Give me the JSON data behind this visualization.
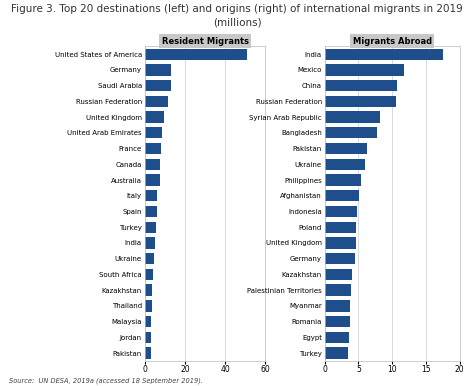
{
  "title_line1": "Figure 3. Top 20 destinations (left) and origins (right) of international migrants in 2019",
  "title_line2": "(millions)",
  "title_fontsize": 7.5,
  "source_text": "Source:  UN DESA, 2019a (accessed 18 September 2019).",
  "left_header": "Resident Migrants",
  "right_header": "Migrants Abroad",
  "bar_color": "#1F4E8C",
  "background_color": "#FFFFFF",
  "header_bg": "#C8C8C8",
  "left_countries": [
    "United States of America",
    "Germany",
    "Saudi Arabia",
    "Russian Federation",
    "United Kingdom",
    "United Arab Emirates",
    "France",
    "Canada",
    "Australia",
    "Italy",
    "Spain",
    "Turkey",
    "India",
    "Ukraine",
    "South Africa",
    "Kazakhstan",
    "Thailand",
    "Malaysia",
    "Jordan",
    "Pakistan"
  ],
  "left_values": [
    50.7,
    13.1,
    13.1,
    11.6,
    9.6,
    8.6,
    8.3,
    7.9,
    7.6,
    6.3,
    6.1,
    5.7,
    5.2,
    4.9,
    4.2,
    3.6,
    3.5,
    3.4,
    3.2,
    3.1
  ],
  "right_countries": [
    "India",
    "Mexico",
    "China",
    "Russian Federation",
    "Syrian Arab Republic",
    "Bangladesh",
    "Pakistan",
    "Ukraine",
    "Philippines",
    "Afghanistan",
    "Indonesia",
    "Poland",
    "United Kingdom",
    "Germany",
    "Kazakhstan",
    "Palestinian Territories",
    "Myanmar",
    "Romania",
    "Egypt",
    "Turkey"
  ],
  "right_values": [
    17.5,
    11.8,
    10.7,
    10.5,
    8.2,
    7.8,
    6.3,
    5.9,
    5.4,
    5.1,
    4.8,
    4.7,
    4.6,
    4.5,
    4.1,
    3.9,
    3.8,
    3.7,
    3.6,
    3.5
  ],
  "left_xlim": [
    0,
    60
  ],
  "right_xlim": [
    0,
    20
  ],
  "left_xticks": [
    0,
    20,
    40,
    60
  ],
  "right_xticks": [
    0,
    5,
    10,
    15,
    20
  ]
}
